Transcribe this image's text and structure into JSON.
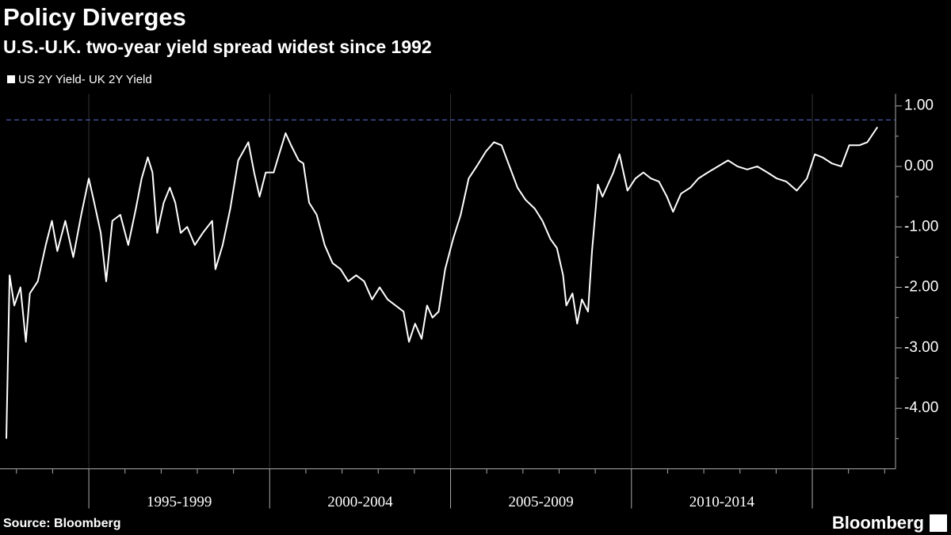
{
  "chart_data": {
    "type": "line",
    "title": "Policy Diverges",
    "subtitle": "U.S.-U.K. two-year yield spread widest since 1992",
    "source": "Source: Bloomberg",
    "brand": "Bloomberg",
    "x": [
      1992.72,
      1992.81,
      1992.94,
      1993.11,
      1993.26,
      1993.37,
      1993.59,
      1993.81,
      1993.98,
      1994.13,
      1994.35,
      1994.57,
      1994.79,
      1995.0,
      1995.15,
      1995.33,
      1995.48,
      1995.65,
      1995.87,
      1996.09,
      1996.3,
      1996.46,
      1996.63,
      1996.76,
      1996.89,
      1997.07,
      1997.24,
      1997.39,
      1997.54,
      1997.72,
      1997.93,
      1998.15,
      1998.41,
      1998.5,
      1998.7,
      1998.91,
      1999.13,
      1999.41,
      1999.57,
      1999.72,
      1999.89,
      2000.11,
      2000.26,
      2000.44,
      2000.59,
      2000.8,
      2000.93,
      2001.09,
      2001.3,
      2001.52,
      2001.74,
      2001.96,
      2002.17,
      2002.39,
      2002.61,
      2002.83,
      2003.04,
      2003.26,
      2003.48,
      2003.7,
      2003.85,
      2004.02,
      2004.2,
      2004.35,
      2004.5,
      2004.67,
      2004.85,
      2005.07,
      2005.28,
      2005.5,
      2005.72,
      2005.98,
      2006.2,
      2006.41,
      2006.63,
      2006.85,
      2007.07,
      2007.33,
      2007.54,
      2007.76,
      2007.94,
      2008.11,
      2008.2,
      2008.37,
      2008.5,
      2008.63,
      2008.8,
      2008.91,
      2009.07,
      2009.2,
      2009.35,
      2009.5,
      2009.67,
      2009.89,
      2010.11,
      2010.33,
      2010.54,
      2010.76,
      2010.98,
      2011.15,
      2011.37,
      2011.63,
      2011.85,
      2012.11,
      2012.39,
      2012.67,
      2012.93,
      2013.2,
      2013.48,
      2013.76,
      2014.02,
      2014.28,
      2014.57,
      2014.85,
      2015.07,
      2015.28,
      2015.54,
      2015.8,
      2016.02,
      2016.3,
      2016.52,
      2016.8
    ],
    "series": [
      {
        "name": "US 2Y Yield- UK 2Y Yield",
        "color": "#ffffff",
        "values": [
          -4.5,
          -1.8,
          -2.3,
          -2.0,
          -2.9,
          -2.1,
          -1.9,
          -1.3,
          -0.9,
          -1.4,
          -0.9,
          -1.5,
          -0.8,
          -0.2,
          -0.6,
          -1.1,
          -1.9,
          -0.9,
          -0.8,
          -1.3,
          -0.7,
          -0.2,
          0.15,
          -0.1,
          -1.1,
          -0.6,
          -0.35,
          -0.6,
          -1.1,
          -1.0,
          -1.3,
          -1.1,
          -0.9,
          -1.7,
          -1.3,
          -0.7,
          0.1,
          0.4,
          -0.1,
          -0.5,
          -0.1,
          -0.1,
          0.2,
          0.55,
          0.35,
          0.1,
          0.05,
          -0.6,
          -0.8,
          -1.3,
          -1.6,
          -1.7,
          -1.9,
          -1.8,
          -1.9,
          -2.2,
          -2.0,
          -2.2,
          -2.3,
          -2.4,
          -2.9,
          -2.6,
          -2.85,
          -2.3,
          -2.5,
          -2.4,
          -1.7,
          -1.2,
          -0.8,
          -0.2,
          0.0,
          0.25,
          0.4,
          0.35,
          0.0,
          -0.35,
          -0.55,
          -0.7,
          -0.9,
          -1.2,
          -1.35,
          -1.8,
          -2.3,
          -2.1,
          -2.6,
          -2.2,
          -2.4,
          -1.4,
          -0.3,
          -0.5,
          -0.3,
          -0.1,
          0.2,
          -0.4,
          -0.2,
          -0.1,
          -0.2,
          -0.25,
          -0.5,
          -0.75,
          -0.45,
          -0.35,
          -0.2,
          -0.1,
          0.0,
          0.1,
          0.0,
          -0.05,
          0.0,
          -0.1,
          -0.2,
          -0.25,
          -0.4,
          -0.2,
          0.2,
          0.15,
          0.05,
          0.0,
          0.35,
          0.35,
          0.4,
          0.65
        ]
      }
    ],
    "xlim": [
      1992.72,
      2017.3
    ],
    "xticks": [
      1995,
      2000,
      2005,
      2010,
      2015
    ],
    "xticks_minor": [
      1993,
      1994,
      1996,
      1997,
      1998,
      1999,
      2001,
      2002,
      2003,
      2004,
      2006,
      2007,
      2008,
      2009,
      2011,
      2012,
      2013,
      2014,
      2016,
      2017
    ],
    "x_periods": [
      {
        "label": "1995-1999",
        "start": 1995,
        "end": 2000
      },
      {
        "label": "2000-2004",
        "start": 2000,
        "end": 2005
      },
      {
        "label": "2005-2009",
        "start": 2005,
        "end": 2010
      },
      {
        "label": "2010-2014",
        "start": 2010,
        "end": 2015
      }
    ],
    "ylim": [
      -5,
      1.2
    ],
    "yticks": [
      {
        "value": 1,
        "label": "1.00"
      },
      {
        "value": 0,
        "label": "0.00"
      },
      {
        "value": -1,
        "label": "-1.00"
      },
      {
        "value": -2,
        "label": "-2.00"
      },
      {
        "value": -3,
        "label": "-3.00"
      },
      {
        "value": -4,
        "label": "-4.00"
      }
    ],
    "yticks_minor": [
      0.5,
      -0.5,
      -1.5,
      -2.5,
      -3.5,
      -4.5
    ],
    "reference_line": {
      "value": 0.77,
      "color": "#5b6fd6",
      "dashed": true
    },
    "grid": true,
    "grid_color": "#333333",
    "legend": "top-left"
  }
}
